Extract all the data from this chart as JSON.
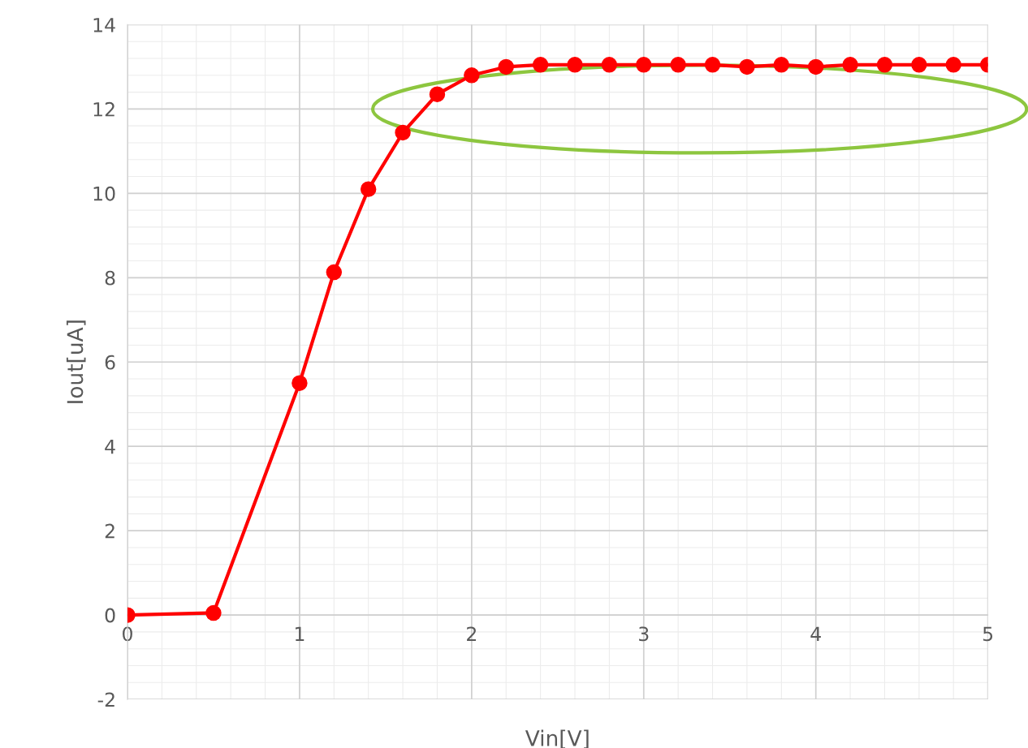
{
  "chart_data": {
    "type": "line",
    "xlabel": "Vin[V]",
    "ylabel": "Iout[uA]",
    "x": [
      0,
      0.5,
      1.0,
      1.2,
      1.4,
      1.6,
      1.8,
      2.0,
      2.2,
      2.4,
      2.6,
      2.8,
      3.0,
      3.2,
      3.4,
      3.6,
      3.8,
      4.0,
      4.2,
      4.4,
      4.6,
      4.8,
      5.0
    ],
    "series": [
      {
        "color": "#ff0000",
        "values": [
          0,
          0.05,
          5.5,
          8.13,
          10.1,
          11.44,
          12.35,
          12.8,
          13.0,
          13.05,
          13.05,
          13.05,
          13.05,
          13.05,
          13.05,
          13.0,
          13.05,
          13.0,
          13.05,
          13.05,
          13.05,
          13.05,
          13.05
        ]
      }
    ],
    "xlim": [
      0,
      5
    ],
    "xticks": [
      0,
      1,
      2,
      3,
      4,
      5
    ],
    "ylim": [
      -2,
      14
    ],
    "yticks": [
      -2,
      0,
      2,
      4,
      6,
      8,
      10,
      12,
      14
    ],
    "grid": true,
    "marker": "circle",
    "line_style": "solid",
    "legend": false
  }
}
